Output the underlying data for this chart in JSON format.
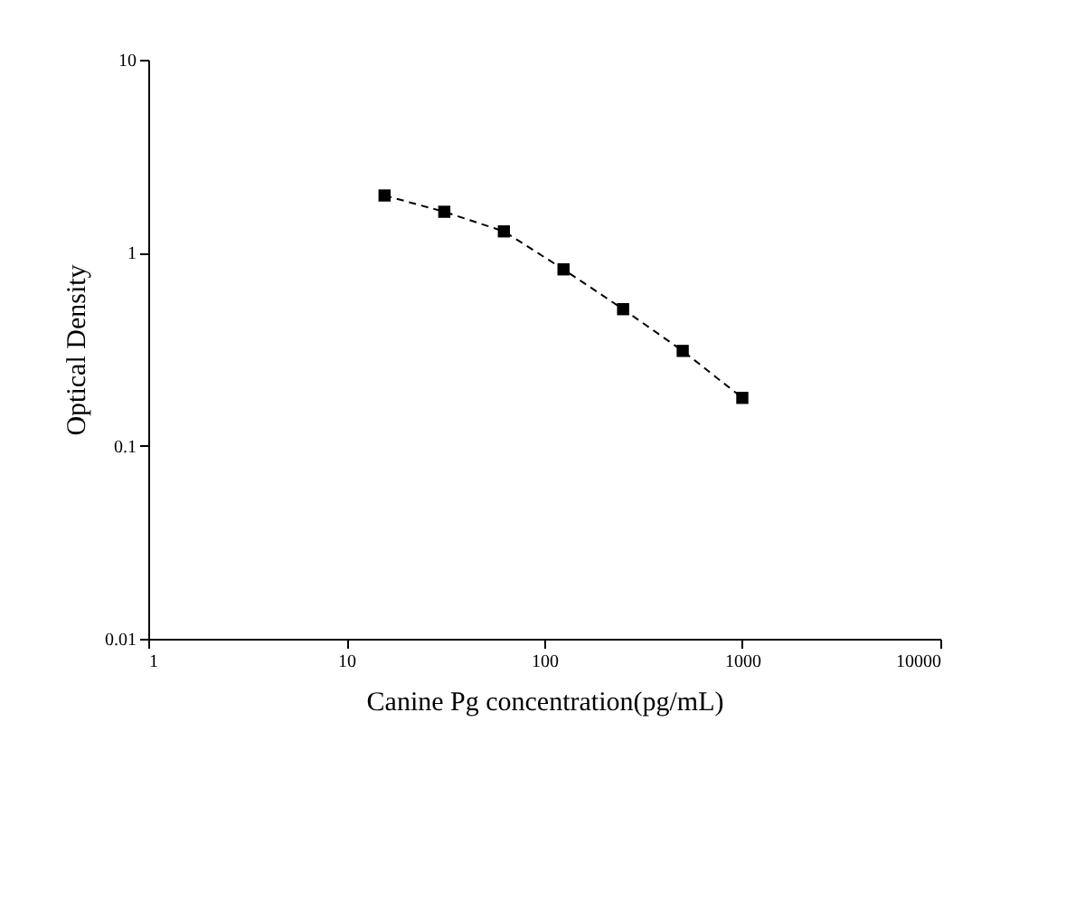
{
  "chart_data": {
    "type": "line",
    "xlabel": "Canine Pg concentration(pg/mL)",
    "ylabel": "Optical Density",
    "x": [
      15.6,
      31.25,
      62.5,
      125,
      250,
      500,
      1000
    ],
    "series": [
      {
        "color": "#000000",
        "values": [
          1.98,
          1.63,
          1.29,
          0.82,
          0.51,
          0.31,
          0.177
        ]
      }
    ],
    "log": "xy",
    "xlim": [
      1,
      10000
    ],
    "xticks": [
      1,
      10,
      100,
      1000,
      10000
    ],
    "ylim": [
      0.01,
      10
    ],
    "yticks": [
      0.01,
      0.1,
      1,
      10
    ],
    "marker": "square",
    "line_style": "dashed",
    "grid": false,
    "legend": false
  }
}
